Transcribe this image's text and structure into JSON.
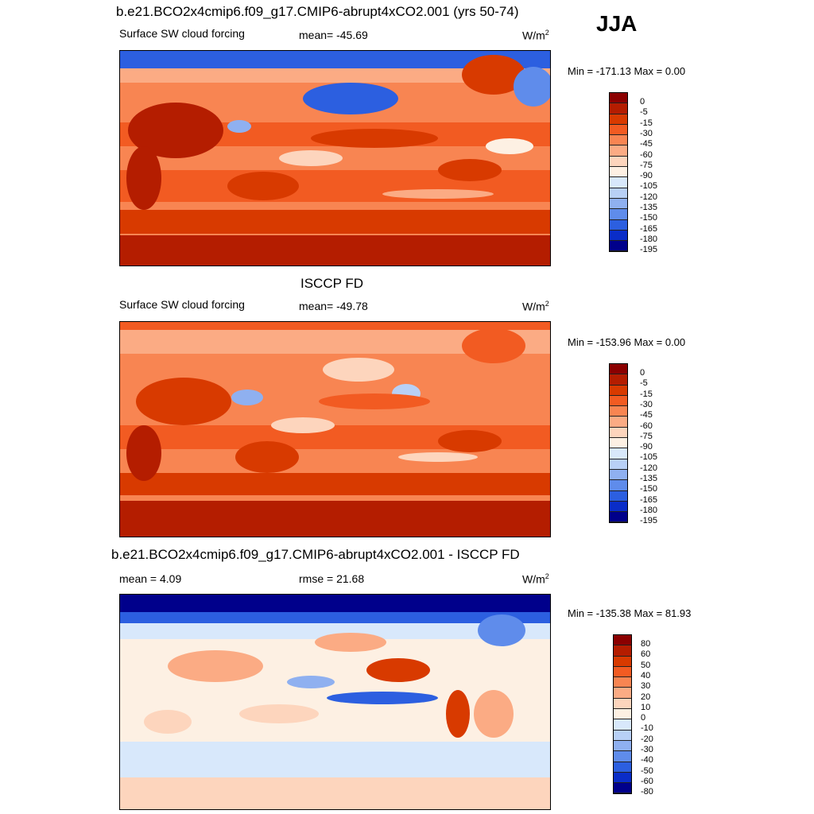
{
  "season": "JJA",
  "units_text": "W/m",
  "units_sup": "2",
  "panels": [
    {
      "title": "b.e21.BCO2x4cmip6.f09_g17.CMIP6-abrupt4xCO2.001 (yrs 50-74)",
      "variable": "Surface SW cloud forcing",
      "stat1": "mean= -45.69",
      "stat2": "",
      "minmax": "Min = -171.13 Max =   0.00",
      "colorbar_ticks": [
        "0",
        "-5",
        "-15",
        "-30",
        "-45",
        "-60",
        "-75",
        "-90",
        "-105",
        "-120",
        "-135",
        "-150",
        "-165",
        "-180",
        "-195"
      ]
    },
    {
      "title": "ISCCP FD",
      "variable": "Surface SW cloud forcing",
      "stat1": "mean= -49.78",
      "stat2": "",
      "minmax": "Min = -153.96 Max =   0.00",
      "colorbar_ticks": [
        "0",
        "-5",
        "-15",
        "-30",
        "-45",
        "-60",
        "-75",
        "-90",
        "-105",
        "-120",
        "-135",
        "-150",
        "-165",
        "-180",
        "-195"
      ]
    },
    {
      "title": "b.e21.BCO2x4cmip6.f09_g17.CMIP6-abrupt4xCO2.001 - ISCCP FD",
      "variable": "mean =   4.09",
      "stat1": "rmse =  21.68",
      "stat2": "",
      "minmax": "Min = -135.38 Max =  81.93",
      "colorbar_ticks": [
        "80",
        "60",
        "50",
        "40",
        "30",
        "20",
        "10",
        "0",
        "-10",
        "-20",
        "-30",
        "-40",
        "-50",
        "-60",
        "-80"
      ]
    }
  ],
  "colors": {
    "abs_scale": [
      "#8b0000",
      "#b41d00",
      "#d83a00",
      "#f25b22",
      "#f88552",
      "#fbab84",
      "#fdd5bd",
      "#fdf0e3",
      "#d8e8fb",
      "#b8d0f6",
      "#8fb0f0",
      "#5f8ceb",
      "#2c5fe0",
      "#0a2dc8",
      "#00008b"
    ],
    "diff_scale": [
      "#8b0000",
      "#b41d00",
      "#d83a00",
      "#f25b22",
      "#f88552",
      "#fbab84",
      "#fdd5bd",
      "#fdf0e3",
      "#d8e8fb",
      "#b8d0f6",
      "#8fb0f0",
      "#5f8ceb",
      "#2c5fe0",
      "#0a2dc8",
      "#00008b"
    ]
  }
}
